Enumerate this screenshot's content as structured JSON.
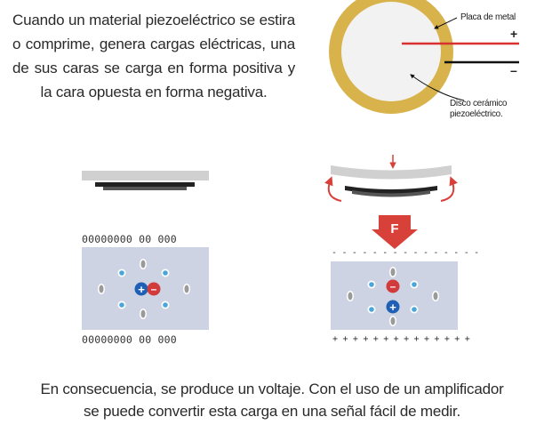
{
  "intro_text": "Cuando un material piezoeléctrico se estira o comprime, genera cargas eléctricas, una de sus caras se carga en forma positiva y la cara opuesta en forma negativa.",
  "disc_labels": {
    "metal_plate": "Placa de metal",
    "ceramic_line1": "Disco cerámico",
    "ceramic_line2": "piezoeléctrico.",
    "positive_sign": "+",
    "negative_sign": "–"
  },
  "force_label": "F",
  "rest_top_charges": "00000000 00 000",
  "rest_bottom_charges": "00000000 00 000",
  "compressed_top_charges": "- - - - - - - - - - - - - - -",
  "compressed_bottom_charges": "+ + + + + + + + + + + + + +",
  "ion_signs": {
    "plus": "+",
    "minus": "–"
  },
  "conclusion_line1": "En consecuencia, se produce un voltaje. Con el uso de un amplificador",
  "conclusion_line2": "se puede convertir esta carga en una señal fácil de medir.",
  "colors": {
    "metal_plate": "#d8b24a",
    "ceramic_disc": "#f2f2f2",
    "wire_positive": "#d93030",
    "wire_negative": "#111111",
    "arrow_red": "#d8413a",
    "lattice_bg": "#cdd3e2",
    "ion_blue": "#4aa6d8",
    "ion_gray": "#9a9a9a",
    "charge_positive": "#1f5fb5",
    "charge_negative": "#d23b3b"
  }
}
